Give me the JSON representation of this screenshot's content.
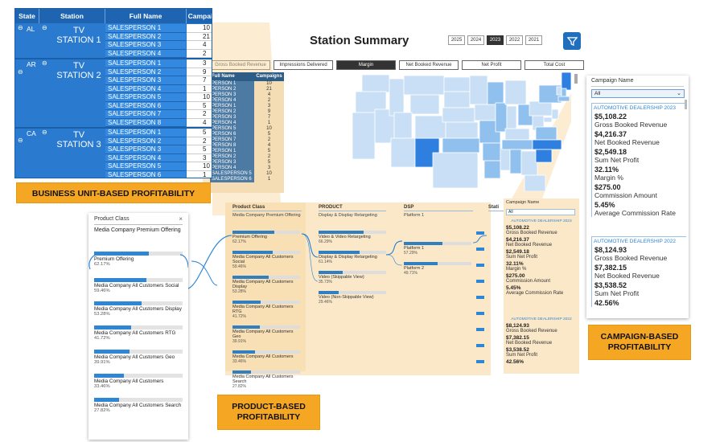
{
  "station_table": {
    "headers": {
      "state": "State",
      "station": "Station",
      "full_name": "Full Name",
      "campaigns": "Campaigns"
    },
    "groups": [
      {
        "state": "AL",
        "station": "TV STATION 1",
        "rows": [
          {
            "name": "SALESPERSON 1",
            "campaigns": "10"
          },
          {
            "name": "SALESPERSON 2",
            "campaigns": "21"
          },
          {
            "name": "SALESPERSON 3",
            "campaigns": "4"
          },
          {
            "name": "SALESPERSON 4",
            "campaigns": "2"
          }
        ]
      },
      {
        "state": "AR",
        "station": "TV STATION 2",
        "rows": [
          {
            "name": "SALESPERSON 1",
            "campaigns": "3"
          },
          {
            "name": "SALESPERSON 2",
            "campaigns": "9"
          },
          {
            "name": "SALESPERSON 3",
            "campaigns": "7"
          },
          {
            "name": "SALESPERSON 4",
            "campaigns": "1"
          },
          {
            "name": "SALESPERSON 5",
            "campaigns": "10"
          },
          {
            "name": "SALESPERSON 6",
            "campaigns": "5"
          },
          {
            "name": "SALESPERSON 7",
            "campaigns": "2"
          },
          {
            "name": "SALESPERSON 8",
            "campaigns": "4"
          }
        ]
      },
      {
        "state": "CA",
        "station": "TV STATION 3",
        "rows": [
          {
            "name": "SALESPERSON 1",
            "campaigns": "5"
          },
          {
            "name": "SALESPERSON 2",
            "campaigns": "2"
          },
          {
            "name": "SALESPERSON 3",
            "campaigns": "5"
          },
          {
            "name": "SALESPERSON 4",
            "campaigns": "3"
          },
          {
            "name": "SALESPERSON 5",
            "campaigns": "10"
          },
          {
            "name": "SALESPERSON 6",
            "campaigns": "1"
          }
        ]
      }
    ]
  },
  "dashboard": {
    "title": "Station Summary",
    "years": [
      "2025",
      "2024",
      "2023",
      "2022",
      "2021"
    ],
    "active_year": "2023",
    "metrics": [
      "Gross Booked Revenue",
      "Impressions Delivered",
      "Margin",
      "Net Booked Revenue",
      "Net Profit",
      "Total Cost"
    ],
    "active_metric": "Margin",
    "behind_table": {
      "headers": [
        "Full Name",
        "Campaigns"
      ],
      "rows": [
        [
          "PERSON 1",
          "10"
        ],
        [
          "PERSON 2",
          "21"
        ],
        [
          "PERSON 3",
          "4"
        ],
        [
          "PERSON 4",
          "2"
        ],
        [
          "PERSON 1",
          "3"
        ],
        [
          "PERSON 2",
          "9"
        ],
        [
          "PERSON 3",
          "7"
        ],
        [
          "PERSON 4",
          "1"
        ],
        [
          "PERSON 5",
          "10"
        ],
        [
          "PERSON 6",
          "5"
        ],
        [
          "PERSON 7",
          "2"
        ],
        [
          "PERSON 8",
          "4"
        ],
        [
          "PERSON 1",
          "5"
        ],
        [
          "PERSON 2",
          "2"
        ],
        [
          "PERSON 3",
          "5"
        ],
        [
          "PERSON 4",
          "3"
        ],
        [
          "SALESPERSON 5",
          "10"
        ],
        [
          "SALESPERSON 6",
          "1"
        ]
      ]
    }
  },
  "labels": {
    "business": "BUSINESS UNIT-BASED PROFITABILITY",
    "product_line1": "PRODUCT-BASED",
    "product_line2": "PROFITABILITY",
    "campaign_line1": "CAMPAIGN-BASED",
    "campaign_line2": "PROFITABILITY"
  },
  "product_panel": {
    "title": "Product Class",
    "subtitle": "Media Company Premium Offering",
    "items": [
      {
        "label": "Premium Offering",
        "pct": "62.17%",
        "value": 0.6217
      },
      {
        "label": "Media Company All Customers Social",
        "pct": "59.46%",
        "value": 0.5946
      },
      {
        "label": "Media Company All Customers Display",
        "pct": "53.28%",
        "value": 0.5328
      },
      {
        "label": "Media Company All Customers RTG",
        "pct": "41.72%",
        "value": 0.4172
      },
      {
        "label": "Media Company All Customers Geo",
        "pct": "39.91%",
        "value": 0.3991
      },
      {
        "label": "Media Company All Customers",
        "pct": "33.46%",
        "value": 0.3346
      },
      {
        "label": "Media Company All Customers Search",
        "pct": "27.82%",
        "value": 0.2782
      }
    ]
  },
  "decomp": {
    "col1": {
      "title": "Product Class",
      "subtitle": "Media Company Premium Offering"
    },
    "col2": {
      "title": "PRODUCT",
      "subtitle": "Display & Display Retargeting",
      "items": [
        {
          "label": "Video & Video Retargeting",
          "pct": "66.29%",
          "value": 0.6629
        },
        {
          "label": "Display & Display Retargeting",
          "pct": "61.14%",
          "value": 0.6114
        },
        {
          "label": "Video (Skippable View)",
          "pct": "35.73%",
          "value": 0.3573
        },
        {
          "label": "Video (Non-Skippable View)",
          "pct": "29.46%",
          "value": 0.2946
        }
      ]
    },
    "col3": {
      "title": "DSP",
      "subtitle": "Platform 1",
      "items": [
        {
          "label": "Platform 1",
          "pct": "57.29%",
          "value": 0.5729
        },
        {
          "label": "Platform 2",
          "pct": "49.71%",
          "value": 0.4971
        }
      ]
    },
    "col4": {
      "title": "Stati"
    }
  },
  "campaign_panel": {
    "title": "Campaign Name",
    "selected": "All",
    "groups": [
      {
        "name": "AUTOMOTIVE DEALERSHIP 2023",
        "metrics": [
          {
            "value": "$5,108.22",
            "label": "Gross Booked Revenue"
          },
          {
            "value": "$4,216.37",
            "label": "Net Booked Revenue"
          },
          {
            "value": "$2,549.18",
            "label": "Sum Net Profit"
          },
          {
            "value": "32.11%",
            "label": "Margin %"
          },
          {
            "value": "$275.00",
            "label": "Commission Amount"
          },
          {
            "value": "5.45%",
            "label": "Average Commission Rate"
          }
        ]
      },
      {
        "name": "AUTOMOTIVE DEALERSHIP 2022",
        "metrics": [
          {
            "value": "$8,124.93",
            "label": "Gross Booked Revenue"
          },
          {
            "value": "$7,382.15",
            "label": "Net Booked Revenue"
          },
          {
            "value": "$3,538.52",
            "label": "Sum Net Profit"
          },
          {
            "value": "42.56%",
            "label": ""
          }
        ]
      }
    ]
  },
  "colors": {
    "accent": "#2a7ad0",
    "orange": "#f5a623",
    "map_light": "#c9dff5",
    "map_mid": "#8fc0ee",
    "map_dark": "#2f7fe0"
  }
}
